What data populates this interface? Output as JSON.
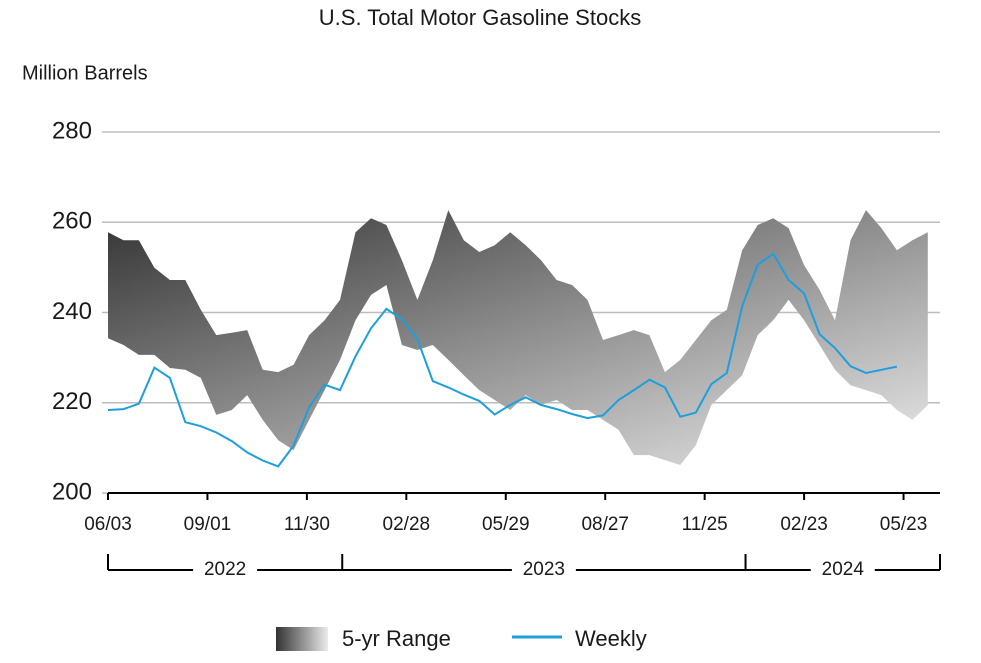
{
  "chart_data": {
    "type": "line",
    "title": "U.S. Total Motor Gasoline Stocks",
    "y_label": "Million Barrels",
    "x": [
      "2022-06-03",
      "2022-06-17",
      "2022-07-01",
      "2022-07-15",
      "2022-07-29",
      "2022-08-12",
      "2022-08-26",
      "2022-09-09",
      "2022-09-23",
      "2022-10-07",
      "2022-10-21",
      "2022-11-04",
      "2022-11-18",
      "2022-12-02",
      "2022-12-16",
      "2022-12-30",
      "2023-01-13",
      "2023-01-27",
      "2023-02-10",
      "2023-02-24",
      "2023-03-10",
      "2023-03-24",
      "2023-04-07",
      "2023-04-21",
      "2023-05-05",
      "2023-05-19",
      "2023-06-02",
      "2023-06-16",
      "2023-06-30",
      "2023-07-14",
      "2023-07-28",
      "2023-08-11",
      "2023-08-25",
      "2023-09-08",
      "2023-09-22",
      "2023-10-06",
      "2023-10-20",
      "2023-11-03",
      "2023-11-17",
      "2023-12-01",
      "2023-12-15",
      "2023-12-29",
      "2024-01-12",
      "2024-01-26",
      "2024-02-09",
      "2024-02-23",
      "2024-03-08",
      "2024-03-22",
      "2024-04-05",
      "2024-04-19",
      "2024-05-03",
      "2024-05-17",
      "2024-05-31",
      "2024-06-14"
    ],
    "series": [
      {
        "name": "5-yr Range",
        "colors": [
          "#333333",
          "#ebebeb"
        ],
        "upper": [
          257.8,
          256,
          256,
          249.9,
          247.2,
          247.2,
          240.6,
          235,
          235.5,
          236.1,
          227.3,
          226.8,
          228.4,
          235,
          238.3,
          242.8,
          257.8,
          260.9,
          259.4,
          251.6,
          242.8,
          251.6,
          262.7,
          256,
          253.4,
          254.9,
          257.8,
          254.9,
          251.6,
          247.2,
          246.1,
          242.8,
          233.9,
          235,
          236.1,
          235,
          226.8,
          229.5,
          233.9,
          238.3,
          240.6,
          253.8,
          259.4,
          260.9,
          258.7,
          250.5,
          245,
          238.3,
          256,
          262.7,
          258.7,
          253.8,
          256,
          257.8
        ],
        "lower": [
          234.3,
          232.8,
          230.6,
          230.6,
          227.7,
          227.3,
          225.5,
          217.3,
          218.4,
          221.7,
          216.2,
          211.7,
          209.5,
          216.2,
          222.8,
          229.5,
          238.3,
          243.9,
          246.1,
          232.8,
          231.7,
          232.8,
          229.5,
          226.1,
          222.8,
          220.6,
          218.4,
          221.7,
          219.5,
          220.6,
          218.4,
          218.4,
          216.2,
          214,
          208.4,
          208.4,
          207.3,
          206.2,
          210.6,
          219.5,
          222.8,
          226.1,
          235,
          238.3,
          242.8,
          238.3,
          232.8,
          227.3,
          223.9,
          222.8,
          221.7,
          218.4,
          216.2,
          219.5
        ]
      },
      {
        "name": "Weekly",
        "color": "#1e9fdc",
        "values": [
          218.4,
          218.6,
          219.8,
          227.8,
          225.5,
          215.7,
          214.8,
          213.4,
          211.5,
          209,
          207.2,
          205.9,
          210.5,
          219,
          224,
          222.8,
          230.3,
          236.5,
          240.8,
          238.5,
          234.1,
          224.8,
          223.4,
          221.8,
          220.4,
          217.4,
          219.5,
          221.2,
          219.5,
          218.6,
          217.5,
          216.6,
          217.2,
          220.6,
          222.8,
          225.1,
          223.4,
          216.9,
          217.8,
          224.1,
          226.6,
          241.4,
          250.6,
          253,
          247.2,
          244.2,
          235.2,
          232.1,
          228.1,
          226.6,
          227.3,
          228,
          null,
          null
        ]
      }
    ],
    "xlim": [
      "2022-06-03",
      "2024-06-25"
    ],
    "xticks": [
      {
        "value": "2022-06-03",
        "label": "06/03"
      },
      {
        "value": "2022-09-01",
        "label": "09/01"
      },
      {
        "value": "2022-11-30",
        "label": "11/30"
      },
      {
        "value": "2023-02-28",
        "label": "02/28"
      },
      {
        "value": "2023-05-29",
        "label": "05/29"
      },
      {
        "value": "2023-08-27",
        "label": "08/27"
      },
      {
        "value": "2023-11-25",
        "label": "11/25"
      },
      {
        "value": "2024-02-23",
        "label": "02/23"
      },
      {
        "value": "2024-05-23",
        "label": "05/23"
      }
    ],
    "year_groups": [
      {
        "label": "2022",
        "start": "2022-06-03",
        "end": "2023-01-01"
      },
      {
        "label": "2023",
        "start": "2023-01-01",
        "end": "2024-01-01"
      },
      {
        "label": "2024",
        "start": "2024-01-01",
        "end": "2024-06-25"
      }
    ],
    "ylim": [
      200,
      280
    ],
    "yticks": [
      200,
      220,
      240,
      260,
      280
    ],
    "grid": true
  }
}
